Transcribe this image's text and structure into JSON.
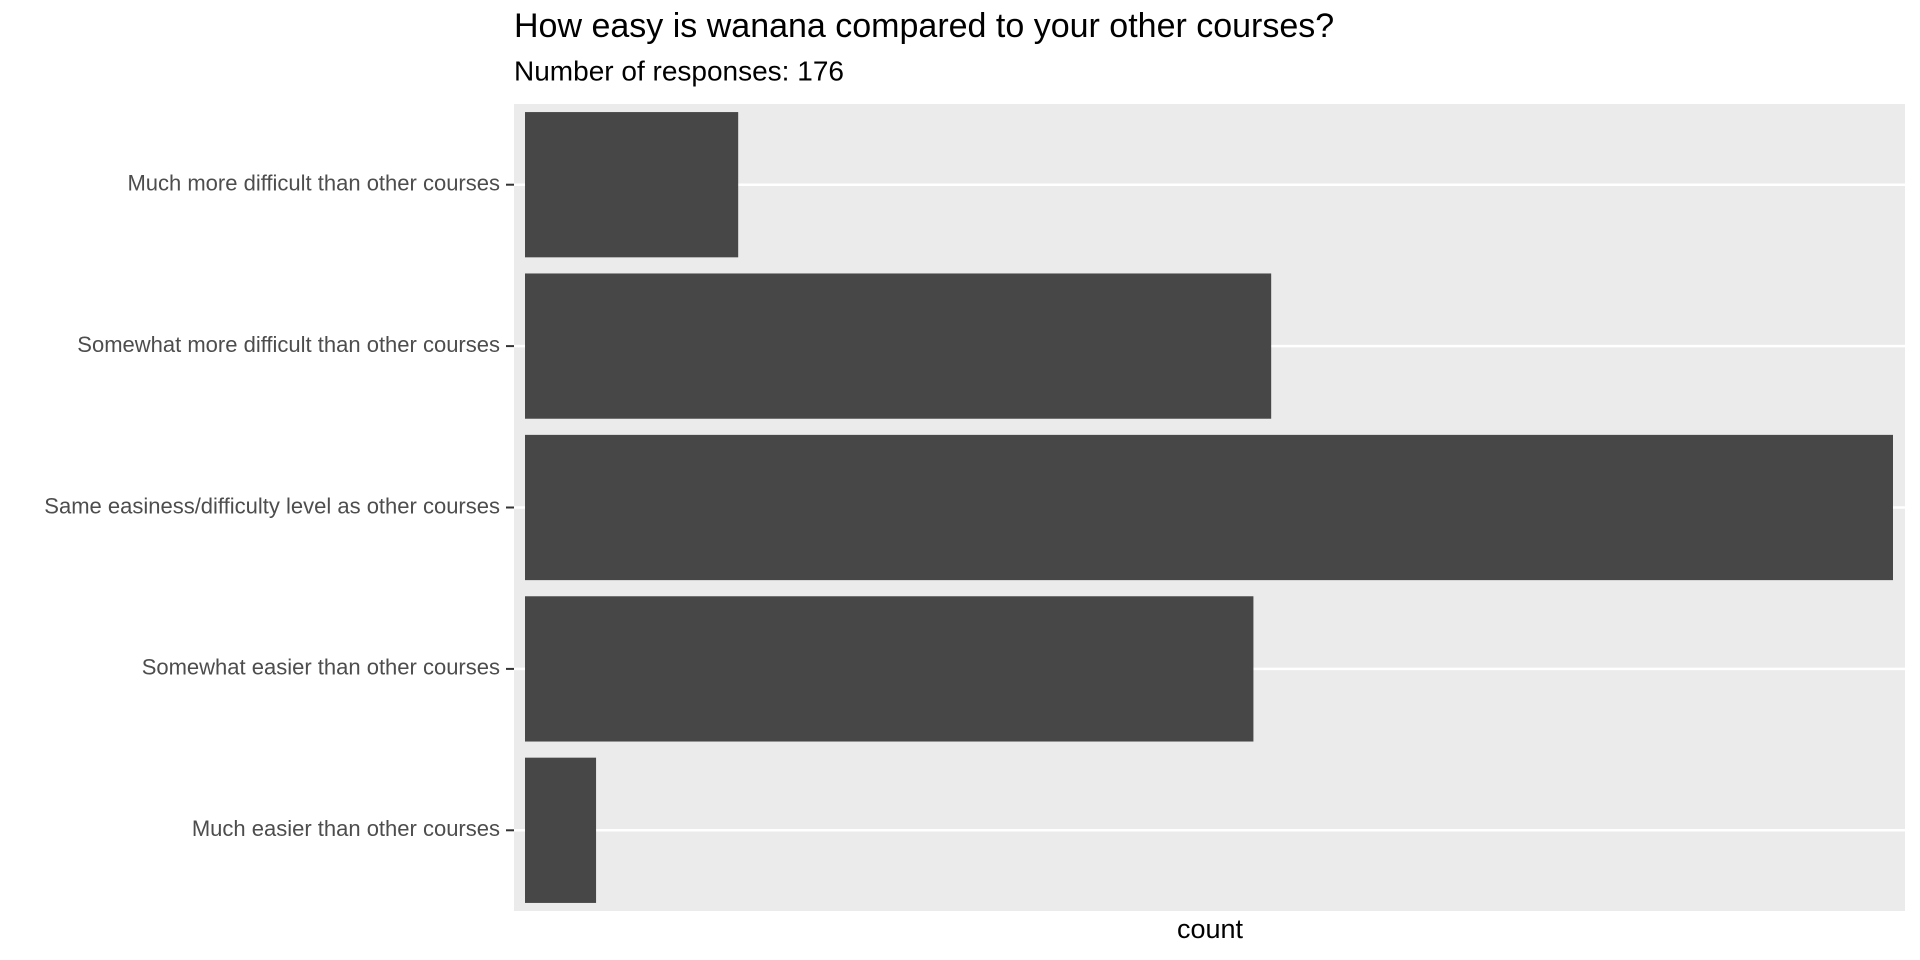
{
  "chart_data": {
    "type": "bar",
    "orientation": "horizontal",
    "title": "How easy is wanana compared to your other courses?",
    "subtitle": "Number of responses: 176",
    "x_label": "count",
    "categories": [
      "Much more difficult than other courses",
      "Somewhat more difficult than other courses",
      "Same easiness/difficulty level as other courses",
      "Somewhat easier than other courses",
      "Much easier than other courses"
    ],
    "values": [
      12,
      42,
      77,
      41,
      4
    ],
    "color": "#474747",
    "xlim": [
      0,
      77
    ],
    "grid": true
  }
}
